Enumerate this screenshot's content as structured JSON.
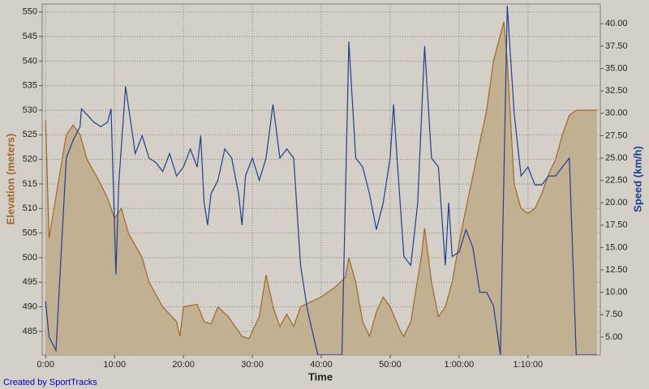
{
  "chart_data": {
    "type": "line",
    "xlabel": "Time",
    "ylabel": "Elevation (meters)",
    "y2label": "Speed (km/h)",
    "credit": "Created by SportTracks",
    "xlim": [
      -0.5,
      80.5
    ],
    "ylim": [
      480.2,
      551.6
    ],
    "y2lim": [
      3.0,
      42.2
    ],
    "grid": true,
    "xticks": [
      {
        "value": 0,
        "label": "0:00"
      },
      {
        "value": 10,
        "label": "10:00"
      },
      {
        "value": 20,
        "label": "20:00"
      },
      {
        "value": 30,
        "label": "30:00"
      },
      {
        "value": 40,
        "label": "40:00"
      },
      {
        "value": 50,
        "label": "50:00"
      },
      {
        "value": 60,
        "label": "1:00:00"
      },
      {
        "value": 70,
        "label": "1:10:00"
      }
    ],
    "yticks": [
      485,
      490,
      495,
      500,
      505,
      510,
      515,
      520,
      525,
      530,
      535,
      540,
      545,
      550
    ],
    "y2ticks": [
      {
        "value": 5,
        "label": "5.00"
      },
      {
        "value": 7.5,
        "label": "7.50"
      },
      {
        "value": 10,
        "label": "10.00"
      },
      {
        "value": 12.5,
        "label": "12.50"
      },
      {
        "value": 15,
        "label": "15.00"
      },
      {
        "value": 17.5,
        "label": "17.50"
      },
      {
        "value": 20,
        "label": "20.00"
      },
      {
        "value": 22.5,
        "label": "22.50"
      },
      {
        "value": 25,
        "label": "25.00"
      },
      {
        "value": 27.5,
        "label": "27.50"
      },
      {
        "value": 30,
        "label": "30.00"
      },
      {
        "value": 32.5,
        "label": "32.50"
      },
      {
        "value": 35,
        "label": "35.00"
      },
      {
        "value": 37.5,
        "label": "37.50"
      },
      {
        "value": 40,
        "label": "40.00"
      }
    ],
    "series": [
      {
        "name": "Elevation",
        "kind": "area",
        "color": "#a0682a",
        "fill": "#c2b093",
        "x": [
          0,
          0.5,
          3,
          4,
          5,
          6,
          8,
          9,
          10,
          11,
          12,
          14,
          15,
          17,
          19,
          19.5,
          20,
          22,
          23,
          24,
          25,
          26.5,
          28.5,
          29.5,
          31,
          32,
          33,
          34,
          35,
          36,
          37,
          40,
          42,
          43.5,
          44,
          45,
          46,
          47,
          48,
          49,
          50,
          51.5,
          52,
          53,
          54.5,
          55,
          56,
          57,
          58,
          59,
          60,
          61,
          62.5,
          64,
          65,
          66.5,
          67,
          68,
          69,
          70,
          71,
          72,
          73,
          74,
          75,
          76,
          77,
          80
        ],
        "values": [
          528,
          504,
          525,
          527,
          525,
          520,
          515,
          512,
          508,
          510,
          505,
          500,
          495,
          490,
          487,
          484,
          490,
          490.5,
          487,
          486.5,
          490,
          488,
          484,
          483.5,
          488,
          496.5,
          490,
          486,
          488.5,
          486,
          490,
          492,
          494,
          496,
          500,
          495,
          487,
          484,
          489,
          492,
          490,
          485,
          484,
          487,
          500,
          506,
          495,
          488,
          490,
          495,
          503,
          510,
          520,
          530,
          540,
          548,
          540,
          515,
          510,
          509,
          510,
          513,
          517,
          520,
          525,
          529,
          530,
          530
        ]
      },
      {
        "name": "Speed",
        "kind": "line",
        "axis": "y2",
        "color": "#1f3f8f",
        "x": [
          0,
          0.5,
          1.5,
          3,
          4,
          5,
          5.2,
          7,
          8,
          9,
          9.5,
          10.2,
          10.6,
          11.6,
          13,
          14,
          15,
          16,
          17,
          18,
          19,
          20,
          21,
          22,
          22.5,
          23,
          23.5,
          24,
          25,
          26,
          27,
          28,
          28.5,
          29,
          30,
          31,
          32,
          33,
          34,
          35,
          36,
          37,
          38,
          39.5,
          43,
          44,
          45,
          46,
          47,
          48,
          49,
          50,
          50.5,
          51,
          52,
          53,
          54,
          55,
          56,
          57,
          58,
          58.5,
          59,
          60,
          61,
          62,
          63,
          64,
          65,
          66,
          67,
          68,
          69,
          70,
          71,
          72,
          73,
          74,
          75,
          76,
          77,
          80
        ],
        "values": [
          9,
          5,
          3.5,
          25,
          27,
          28.5,
          30.5,
          29,
          28.5,
          29,
          30.5,
          12,
          22,
          33,
          25.5,
          27.5,
          25,
          24.5,
          23.5,
          25.5,
          23,
          24,
          26,
          24,
          27.5,
          20,
          17.5,
          21,
          22.5,
          26,
          25,
          21,
          17.5,
          23,
          25,
          22.5,
          25,
          31,
          25,
          26,
          25,
          13,
          8,
          3,
          3,
          38,
          25,
          24,
          21,
          17,
          20,
          25,
          31,
          25,
          14,
          13,
          20,
          37.5,
          25,
          24,
          13,
          20,
          14,
          14.5,
          17,
          15,
          10,
          10,
          8.5,
          3,
          42,
          30,
          23,
          24,
          22,
          22,
          23,
          23,
          24,
          25,
          3,
          3
        ]
      }
    ]
  }
}
